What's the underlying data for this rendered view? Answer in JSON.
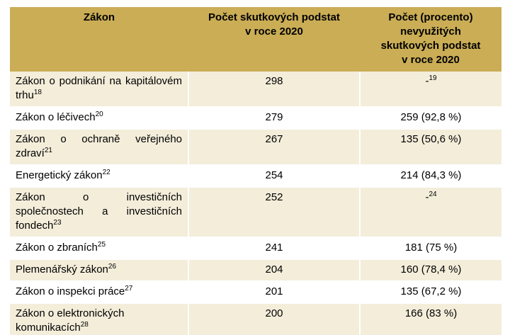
{
  "table": {
    "columns": [
      {
        "label": "Zákon"
      },
      {
        "label": "Počet skutkových podstat\nv roce 2020"
      },
      {
        "label": "Počet (procento)\nnevyužitých\nskutkových podstat\nv roce 2020"
      }
    ],
    "rows": [
      {
        "law": "Zákon o podnikání na kapitálovém trhu",
        "law_sup": "18",
        "count_2020": "298",
        "unused": "-",
        "unused_sup": "19",
        "justify": true
      },
      {
        "law": "Zákon o léčivech",
        "law_sup": "20",
        "count_2020": "279",
        "unused": "259 (92,8 %)",
        "unused_sup": null,
        "justify": false
      },
      {
        "law": "Zákon o ochraně veřejného zdraví",
        "law_sup": "21",
        "count_2020": "267",
        "unused": "135 (50,6 %)",
        "unused_sup": null,
        "justify": true
      },
      {
        "law": "Energetický zákon",
        "law_sup": "22",
        "count_2020": "254",
        "unused": "214 (84,3 %)",
        "unused_sup": null,
        "justify": false
      },
      {
        "law": "Zákon o investičních společnostech a investičních fondech",
        "law_sup": "23",
        "count_2020": "252",
        "unused": "-",
        "unused_sup": "24",
        "justify": true
      },
      {
        "law": "Zákon o zbraních",
        "law_sup": "25",
        "count_2020": "241",
        "unused": "181 (75 %)",
        "unused_sup": null,
        "justify": false
      },
      {
        "law": "Plemenářský zákon",
        "law_sup": "26",
        "count_2020": "204",
        "unused": "160 (78,4 %)",
        "unused_sup": null,
        "justify": false
      },
      {
        "law": "Zákon o inspekci práce",
        "law_sup": "27",
        "count_2020": "201",
        "unused": "135 (67,2 %)",
        "unused_sup": null,
        "justify": false
      },
      {
        "law": "Zákon o elektronických komunikacích",
        "law_sup": "28",
        "count_2020": "200",
        "unused": "166 (83 %)",
        "unused_sup": null,
        "justify": false
      }
    ],
    "colors": {
      "header_bg": "#CAAD55",
      "row_alt_bg": "#F3EDDA",
      "row_bg": "#FFFFFF",
      "divider": "#FFFFFF",
      "bottom_rule": "#9A9A9A",
      "text": "#000000"
    }
  }
}
